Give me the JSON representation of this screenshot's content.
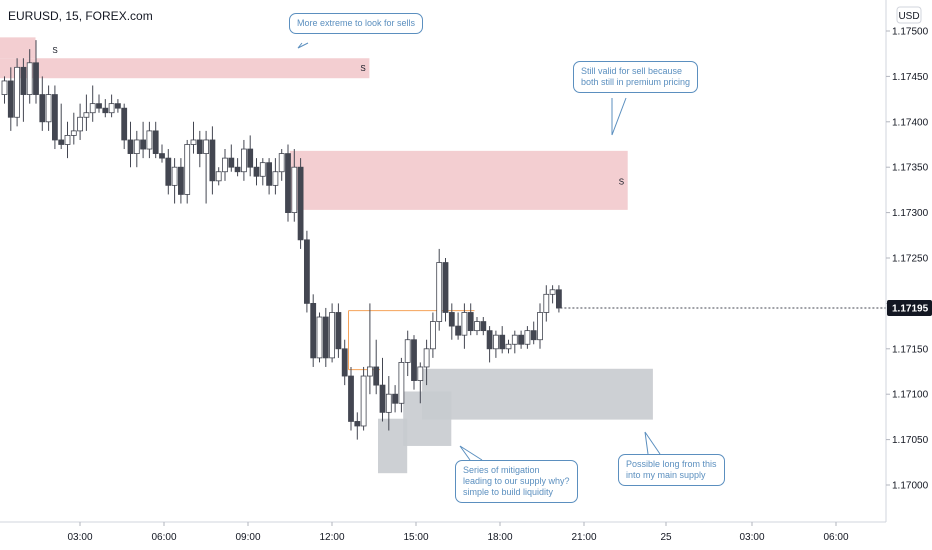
{
  "header": {
    "title": "EURUSD, 15, FOREX.com"
  },
  "axis": {
    "currency": "USD",
    "last_price": "1.17195"
  },
  "annotations": {
    "top": "More extreme to look for sells",
    "right": "Still valid for sell because\nboth still in premium pricing",
    "bottom_mid": "Series of mitigation\nleading to our supply why?\nsimple to build liquidity",
    "bottom_right": "Possible long from this\ninto my main supply"
  },
  "zones": {
    "supply_upper_label": "S",
    "supply_main_label": "S"
  },
  "chart_data": {
    "type": "candlestick",
    "title": "",
    "y_ticks": [
      "1.17500",
      "1.17450",
      "1.17400",
      "1.17350",
      "1.17300",
      "1.17250",
      "1.17200",
      "1.17150",
      "1.17100",
      "1.17050",
      "1.17000"
    ],
    "x_ticks": [
      "03:00",
      "06:00",
      "09:00",
      "12:00",
      "15:00",
      "18:00",
      "21:00",
      "25",
      "03:00",
      "06:00"
    ],
    "ylim": [
      1.16955,
      1.17545
    ],
    "colors": {
      "bull": "#ffffff",
      "bear": "#434651",
      "outline": "#434651",
      "supply": "#f2c9cc",
      "demand": "#c8cbcf"
    },
    "series": [
      {
        "o": 1.1743,
        "h": 1.1745,
        "l": 1.1742,
        "c": 1.17445
      },
      {
        "o": 1.17445,
        "h": 1.1746,
        "l": 1.1739,
        "c": 1.17405
      },
      {
        "o": 1.17405,
        "h": 1.1747,
        "l": 1.17395,
        "c": 1.1746
      },
      {
        "o": 1.1746,
        "h": 1.1747,
        "l": 1.174,
        "c": 1.1743
      },
      {
        "o": 1.1743,
        "h": 1.1748,
        "l": 1.1742,
        "c": 1.17465
      },
      {
        "o": 1.17465,
        "h": 1.1749,
        "l": 1.1742,
        "c": 1.1743
      },
      {
        "o": 1.1743,
        "h": 1.1745,
        "l": 1.1739,
        "c": 1.174
      },
      {
        "o": 1.174,
        "h": 1.1744,
        "l": 1.1739,
        "c": 1.1743
      },
      {
        "o": 1.1743,
        "h": 1.1744,
        "l": 1.1737,
        "c": 1.1738
      },
      {
        "o": 1.1738,
        "h": 1.1742,
        "l": 1.1737,
        "c": 1.17375
      },
      {
        "o": 1.17375,
        "h": 1.174,
        "l": 1.1736,
        "c": 1.17385
      },
      {
        "o": 1.17385,
        "h": 1.1741,
        "l": 1.17375,
        "c": 1.1739
      },
      {
        "o": 1.1739,
        "h": 1.1742,
        "l": 1.1738,
        "c": 1.17405
      },
      {
        "o": 1.17405,
        "h": 1.1743,
        "l": 1.1739,
        "c": 1.1741
      },
      {
        "o": 1.1741,
        "h": 1.1744,
        "l": 1.174,
        "c": 1.1742
      },
      {
        "o": 1.1742,
        "h": 1.1743,
        "l": 1.1741,
        "c": 1.17415
      },
      {
        "o": 1.17415,
        "h": 1.17425,
        "l": 1.17405,
        "c": 1.1741
      },
      {
        "o": 1.1741,
        "h": 1.1743,
        "l": 1.17405,
        "c": 1.1742
      },
      {
        "o": 1.1742,
        "h": 1.17425,
        "l": 1.1741,
        "c": 1.17415
      },
      {
        "o": 1.17415,
        "h": 1.1742,
        "l": 1.1737,
        "c": 1.1738
      },
      {
        "o": 1.1738,
        "h": 1.174,
        "l": 1.1735,
        "c": 1.17365
      },
      {
        "o": 1.17365,
        "h": 1.1739,
        "l": 1.1735,
        "c": 1.1738
      },
      {
        "o": 1.1738,
        "h": 1.174,
        "l": 1.1736,
        "c": 1.1737
      },
      {
        "o": 1.1737,
        "h": 1.174,
        "l": 1.1736,
        "c": 1.1739
      },
      {
        "o": 1.1739,
        "h": 1.174,
        "l": 1.1736,
        "c": 1.17365
      },
      {
        "o": 1.17365,
        "h": 1.17375,
        "l": 1.17355,
        "c": 1.1736
      },
      {
        "o": 1.1736,
        "h": 1.1737,
        "l": 1.1732,
        "c": 1.1733
      },
      {
        "o": 1.1733,
        "h": 1.1736,
        "l": 1.1731,
        "c": 1.1735
      },
      {
        "o": 1.1735,
        "h": 1.1736,
        "l": 1.1731,
        "c": 1.1732
      },
      {
        "o": 1.1732,
        "h": 1.1738,
        "l": 1.1731,
        "c": 1.17375
      },
      {
        "o": 1.17375,
        "h": 1.174,
        "l": 1.17365,
        "c": 1.1738
      },
      {
        "o": 1.1738,
        "h": 1.1739,
        "l": 1.1735,
        "c": 1.17365
      },
      {
        "o": 1.17365,
        "h": 1.1739,
        "l": 1.1731,
        "c": 1.1738
      },
      {
        "o": 1.1738,
        "h": 1.17395,
        "l": 1.1732,
        "c": 1.17335
      },
      {
        "o": 1.17335,
        "h": 1.1735,
        "l": 1.1733,
        "c": 1.17345
      },
      {
        "o": 1.17345,
        "h": 1.1737,
        "l": 1.17335,
        "c": 1.1736
      },
      {
        "o": 1.1736,
        "h": 1.17375,
        "l": 1.17345,
        "c": 1.1735
      },
      {
        "o": 1.1735,
        "h": 1.1736,
        "l": 1.1734,
        "c": 1.17345
      },
      {
        "o": 1.17345,
        "h": 1.1738,
        "l": 1.17335,
        "c": 1.1737
      },
      {
        "o": 1.1737,
        "h": 1.17385,
        "l": 1.1734,
        "c": 1.1735
      },
      {
        "o": 1.1735,
        "h": 1.1736,
        "l": 1.1733,
        "c": 1.1734
      },
      {
        "o": 1.1734,
        "h": 1.1736,
        "l": 1.1733,
        "c": 1.17355
      },
      {
        "o": 1.17355,
        "h": 1.1736,
        "l": 1.1732,
        "c": 1.1733
      },
      {
        "o": 1.1733,
        "h": 1.1736,
        "l": 1.1732,
        "c": 1.17345
      },
      {
        "o": 1.17345,
        "h": 1.1737,
        "l": 1.17335,
        "c": 1.17365
      },
      {
        "o": 1.17365,
        "h": 1.17375,
        "l": 1.1729,
        "c": 1.173
      },
      {
        "o": 1.173,
        "h": 1.1737,
        "l": 1.1729,
        "c": 1.1735
      },
      {
        "o": 1.1735,
        "h": 1.1736,
        "l": 1.1726,
        "c": 1.1727
      },
      {
        "o": 1.1727,
        "h": 1.1728,
        "l": 1.1719,
        "c": 1.172
      },
      {
        "o": 1.172,
        "h": 1.1721,
        "l": 1.1713,
        "c": 1.1714
      },
      {
        "o": 1.1714,
        "h": 1.1719,
        "l": 1.17135,
        "c": 1.17185
      },
      {
        "o": 1.17185,
        "h": 1.17195,
        "l": 1.1713,
        "c": 1.1714
      },
      {
        "o": 1.1714,
        "h": 1.172,
        "l": 1.17135,
        "c": 1.1719
      },
      {
        "o": 1.1719,
        "h": 1.172,
        "l": 1.1714,
        "c": 1.1715
      },
      {
        "o": 1.1715,
        "h": 1.1716,
        "l": 1.1711,
        "c": 1.1712
      },
      {
        "o": 1.1712,
        "h": 1.1713,
        "l": 1.1706,
        "c": 1.1707
      },
      {
        "o": 1.1707,
        "h": 1.1708,
        "l": 1.1705,
        "c": 1.17065
      },
      {
        "o": 1.17065,
        "h": 1.1713,
        "l": 1.1706,
        "c": 1.1712
      },
      {
        "o": 1.1712,
        "h": 1.172,
        "l": 1.171,
        "c": 1.1713
      },
      {
        "o": 1.1713,
        "h": 1.1716,
        "l": 1.171,
        "c": 1.1711
      },
      {
        "o": 1.1711,
        "h": 1.1714,
        "l": 1.1707,
        "c": 1.1708
      },
      {
        "o": 1.1708,
        "h": 1.1712,
        "l": 1.1706,
        "c": 1.171
      },
      {
        "o": 1.171,
        "h": 1.1711,
        "l": 1.1708,
        "c": 1.1709
      },
      {
        "o": 1.1709,
        "h": 1.1714,
        "l": 1.1708,
        "c": 1.17135
      },
      {
        "o": 1.17135,
        "h": 1.1717,
        "l": 1.1712,
        "c": 1.1716
      },
      {
        "o": 1.1716,
        "h": 1.17165,
        "l": 1.17105,
        "c": 1.17115
      },
      {
        "o": 1.17115,
        "h": 1.17135,
        "l": 1.1709,
        "c": 1.1713
      },
      {
        "o": 1.1713,
        "h": 1.1716,
        "l": 1.1711,
        "c": 1.1715
      },
      {
        "o": 1.1715,
        "h": 1.1719,
        "l": 1.1714,
        "c": 1.1718
      },
      {
        "o": 1.1718,
        "h": 1.1726,
        "l": 1.1717,
        "c": 1.17245
      },
      {
        "o": 1.17245,
        "h": 1.1725,
        "l": 1.1718,
        "c": 1.1719
      },
      {
        "o": 1.1719,
        "h": 1.172,
        "l": 1.1716,
        "c": 1.17175
      },
      {
        "o": 1.17175,
        "h": 1.1719,
        "l": 1.1716,
        "c": 1.17165
      },
      {
        "o": 1.17165,
        "h": 1.172,
        "l": 1.1715,
        "c": 1.1719
      },
      {
        "o": 1.1719,
        "h": 1.172,
        "l": 1.17165,
        "c": 1.1717
      },
      {
        "o": 1.1717,
        "h": 1.17185,
        "l": 1.17165,
        "c": 1.1718
      },
      {
        "o": 1.1718,
        "h": 1.17185,
        "l": 1.17165,
        "c": 1.1717
      },
      {
        "o": 1.1717,
        "h": 1.17175,
        "l": 1.17135,
        "c": 1.1715
      },
      {
        "o": 1.1715,
        "h": 1.1717,
        "l": 1.1714,
        "c": 1.17165
      },
      {
        "o": 1.17165,
        "h": 1.17175,
        "l": 1.17145,
        "c": 1.1715
      },
      {
        "o": 1.1715,
        "h": 1.1716,
        "l": 1.17145,
        "c": 1.17155
      },
      {
        "o": 1.17155,
        "h": 1.1717,
        "l": 1.17145,
        "c": 1.17165
      },
      {
        "o": 1.17165,
        "h": 1.1717,
        "l": 1.1715,
        "c": 1.17155
      },
      {
        "o": 1.17155,
        "h": 1.17175,
        "l": 1.1715,
        "c": 1.1717
      },
      {
        "o": 1.1717,
        "h": 1.1718,
        "l": 1.17155,
        "c": 1.1716
      },
      {
        "o": 1.1716,
        "h": 1.172,
        "l": 1.1715,
        "c": 1.1719
      },
      {
        "o": 1.1719,
        "h": 1.1722,
        "l": 1.1718,
        "c": 1.1721
      },
      {
        "o": 1.1721,
        "h": 1.1722,
        "l": 1.172,
        "c": 1.17215
      },
      {
        "o": 1.17215,
        "h": 1.1722,
        "l": 1.1719,
        "c": 1.17195
      }
    ],
    "zones": [
      {
        "kind": "supply",
        "from_bar": 0,
        "to_bar": 58,
        "y1": 1.1747,
        "y2": 1.17448
      },
      {
        "kind": "supply",
        "from_bar": 0,
        "to_bar": 5,
        "y1": 1.17493,
        "y2": 1.1747
      },
      {
        "kind": "supply",
        "from_bar": 46,
        "to_bar": 99,
        "y1": 1.17368,
        "y2": 1.17303
      },
      {
        "kind": "demand",
        "from_bar": 67,
        "to_bar": 103,
        "y1": 1.17128,
        "y2": 1.17072
      },
      {
        "kind": "demand",
        "from_bar": 64,
        "to_bar": 71,
        "y1": 1.17103,
        "y2": 1.17043
      },
      {
        "kind": "demand",
        "from_bar": 60,
        "to_bar": 64,
        "y1": 1.17073,
        "y2": 1.17013
      }
    ]
  }
}
